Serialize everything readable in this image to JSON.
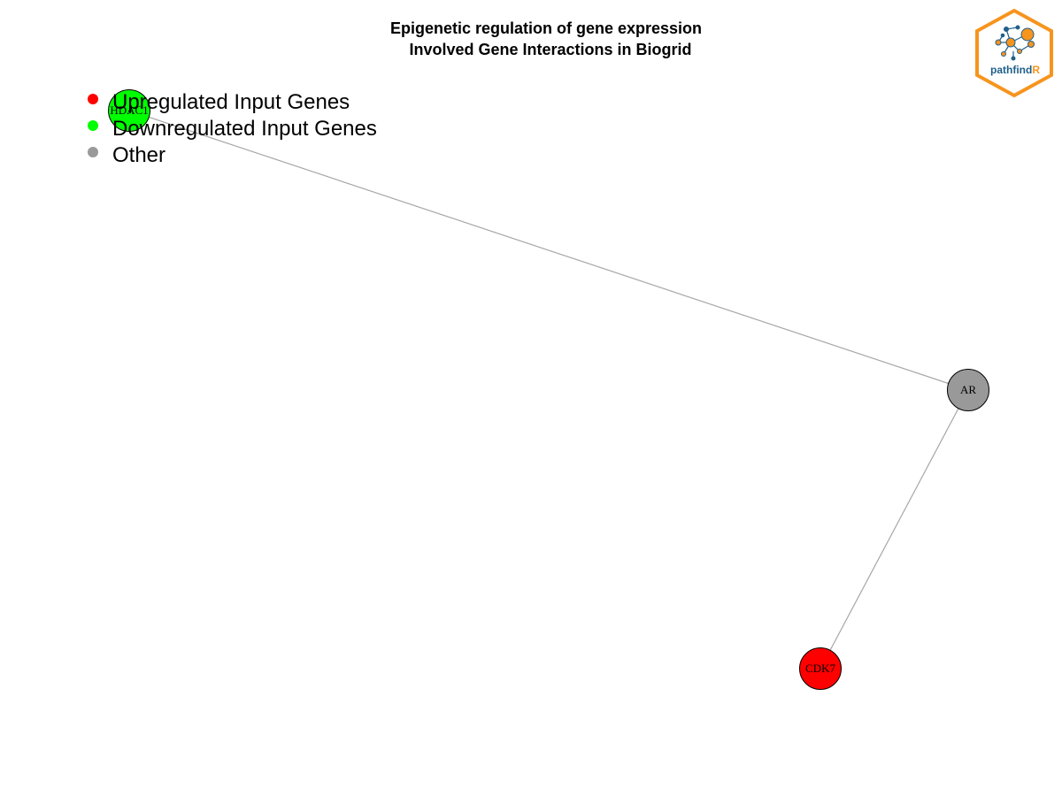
{
  "title": {
    "line1": "Epigenetic regulation of gene expression",
    "line2": "Involved Gene Interactions in Biogrid"
  },
  "legend": [
    {
      "label": "Upregulated Input Genes",
      "color": "#ff0000"
    },
    {
      "label": "Downregulated Input Genes",
      "color": "#00ff00"
    },
    {
      "label": "Other",
      "color": "#999999"
    }
  ],
  "nodes": [
    {
      "id": "HDAC1",
      "label": "HDAC1",
      "category": "downregulated",
      "color": "#00ff00"
    },
    {
      "id": "AR",
      "label": "AR",
      "category": "other",
      "color": "#999999"
    },
    {
      "id": "CDK7",
      "label": "CDK7",
      "category": "upregulated",
      "color": "#ff0000"
    }
  ],
  "edges": [
    {
      "source": "HDAC1",
      "target": "AR"
    },
    {
      "source": "AR",
      "target": "CDK7"
    }
  ],
  "logo": {
    "text_main": "pathfind",
    "text_accent": "R",
    "accent_color": "#f7941d",
    "text_color": "#1f5f8b"
  },
  "colors": {
    "edge": "#a6a6a6",
    "node_stroke": "#000000"
  }
}
